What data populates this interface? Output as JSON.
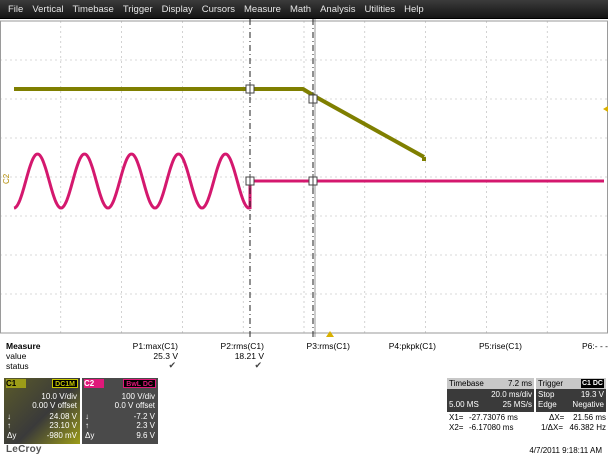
{
  "menu": [
    "File",
    "Vertical",
    "Timebase",
    "Trigger",
    "Display",
    "Cursors",
    "Measure",
    "Math",
    "Analysis",
    "Utilities",
    "Help"
  ],
  "colors": {
    "ch1": "#7f7f00",
    "ch2": "#d4186e",
    "grid": "#b4b4b4"
  },
  "screen": {
    "ch2_marker": "C2"
  },
  "measure": {
    "title": "Measure",
    "row_value": "value",
    "row_status": "status",
    "params": [
      {
        "name": "P1:max(C1)",
        "value": "25.3 V",
        "status": "✔"
      },
      {
        "name": "P2:rms(C1)",
        "value": "18.21 V",
        "status": "✔"
      },
      {
        "name": "P3:rms(C1)",
        "value": "",
        "status": ""
      },
      {
        "name": "P4:pkpk(C1)",
        "value": "",
        "status": ""
      },
      {
        "name": "P5:rise(C1)",
        "value": "",
        "status": ""
      },
      {
        "name": "P6:- - -",
        "value": "",
        "status": ""
      }
    ]
  },
  "ch1": {
    "tag": "C1",
    "coupling": "DC1M",
    "vdiv": "10.0 V/div",
    "offset": "0.00 V offset",
    "r1_label": "↓",
    "r1": "24.08 V",
    "r2_label": "↑",
    "r2": "23.10 V",
    "r3_label": "Δy",
    "r3": "-980 mV"
  },
  "ch2": {
    "tag": "C2",
    "coupling": "BwL DC",
    "vdiv": "100 V/div",
    "offset": "0.0 V offset",
    "r1_label": "↓",
    "r1": "-7.2 V",
    "r2_label": "↑",
    "r2": "2.3 V",
    "r3_label": "Δy",
    "r3": "9.6 V"
  },
  "timebase": {
    "label": "Timebase",
    "delay": "7.2 ms",
    "tdiv": "20.0 ms/div",
    "samples": "5.00 MS",
    "rate": "25 MS/s"
  },
  "trigger": {
    "label": "Trigger",
    "source": "C1 DC",
    "mode": "Stop",
    "level": "19.3 V",
    "type": "Edge",
    "slope": "Negative"
  },
  "cursors": {
    "x1_label": "X1=",
    "x1": "-27.73076 ms",
    "dx_label": "ΔX=",
    "dx": "21.56 ms",
    "x2_label": "X2=",
    "x2": "-6.17080 ms",
    "inv_label": "1/ΔX=",
    "inv": "46.382 Hz"
  },
  "brand": "LeCroy",
  "datetime": "4/7/2011 9:18:11 AM"
}
